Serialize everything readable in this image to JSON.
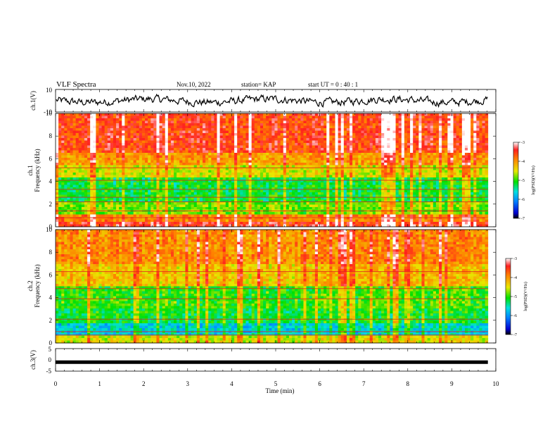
{
  "header": {
    "title": "VLF Spectra",
    "date": "Nov.10, 2022",
    "station": "station= KAP",
    "start": "start  UT =  0 : 40 : 1"
  },
  "chart_data": [
    {
      "type": "line",
      "panel": "ch1-waveform",
      "ylabel": "ch.1(V)",
      "ylim": [
        -10,
        10
      ],
      "y_ticks": [
        "10",
        "-10"
      ],
      "xlim": [
        0,
        10
      ]
    },
    {
      "type": "heatmap",
      "panel": "ch1-spectrogram",
      "ylabel_line1": "ch.1",
      "ylabel_line2": "Frequency (kHz)",
      "ylim": [
        0,
        10
      ],
      "y_ticks": [
        "0",
        "2",
        "4",
        "6",
        "8",
        "10"
      ],
      "xlim": [
        0,
        10
      ],
      "data_end_min": 9.82,
      "colorbar": {
        "label": "log(PSD)(V²/Hz)",
        "range": [
          -7,
          -3
        ],
        "ticks": [
          "-3",
          "-4",
          "-5",
          "-6",
          "-7"
        ]
      }
    },
    {
      "type": "heatmap",
      "panel": "ch2-spectrogram",
      "ylabel_line1": "ch.2",
      "ylabel_line2": "Frequency (kHz)",
      "ylim": [
        0,
        10
      ],
      "y_ticks": [
        "0",
        "2",
        "4",
        "6",
        "8",
        "10"
      ],
      "xlim": [
        0,
        10
      ],
      "data_end_min": 9.82,
      "colorbar": {
        "label": "log(PSD)(V²/Hz)",
        "range": [
          -7,
          -3
        ],
        "ticks": [
          "-3",
          "-4",
          "-5",
          "-6",
          "-7"
        ]
      }
    },
    {
      "type": "line",
      "panel": "ch3-waveform",
      "ylabel": "ch.3(V)",
      "ylim": [
        -5,
        5
      ],
      "y_ticks": [
        "5",
        "0",
        "-5"
      ],
      "level": -1,
      "xlim": [
        0,
        10
      ],
      "xlabel": "Time (min)",
      "x_ticks": [
        "0",
        "1",
        "2",
        "3",
        "4",
        "5",
        "6",
        "7",
        "8",
        "9",
        "10"
      ]
    }
  ]
}
